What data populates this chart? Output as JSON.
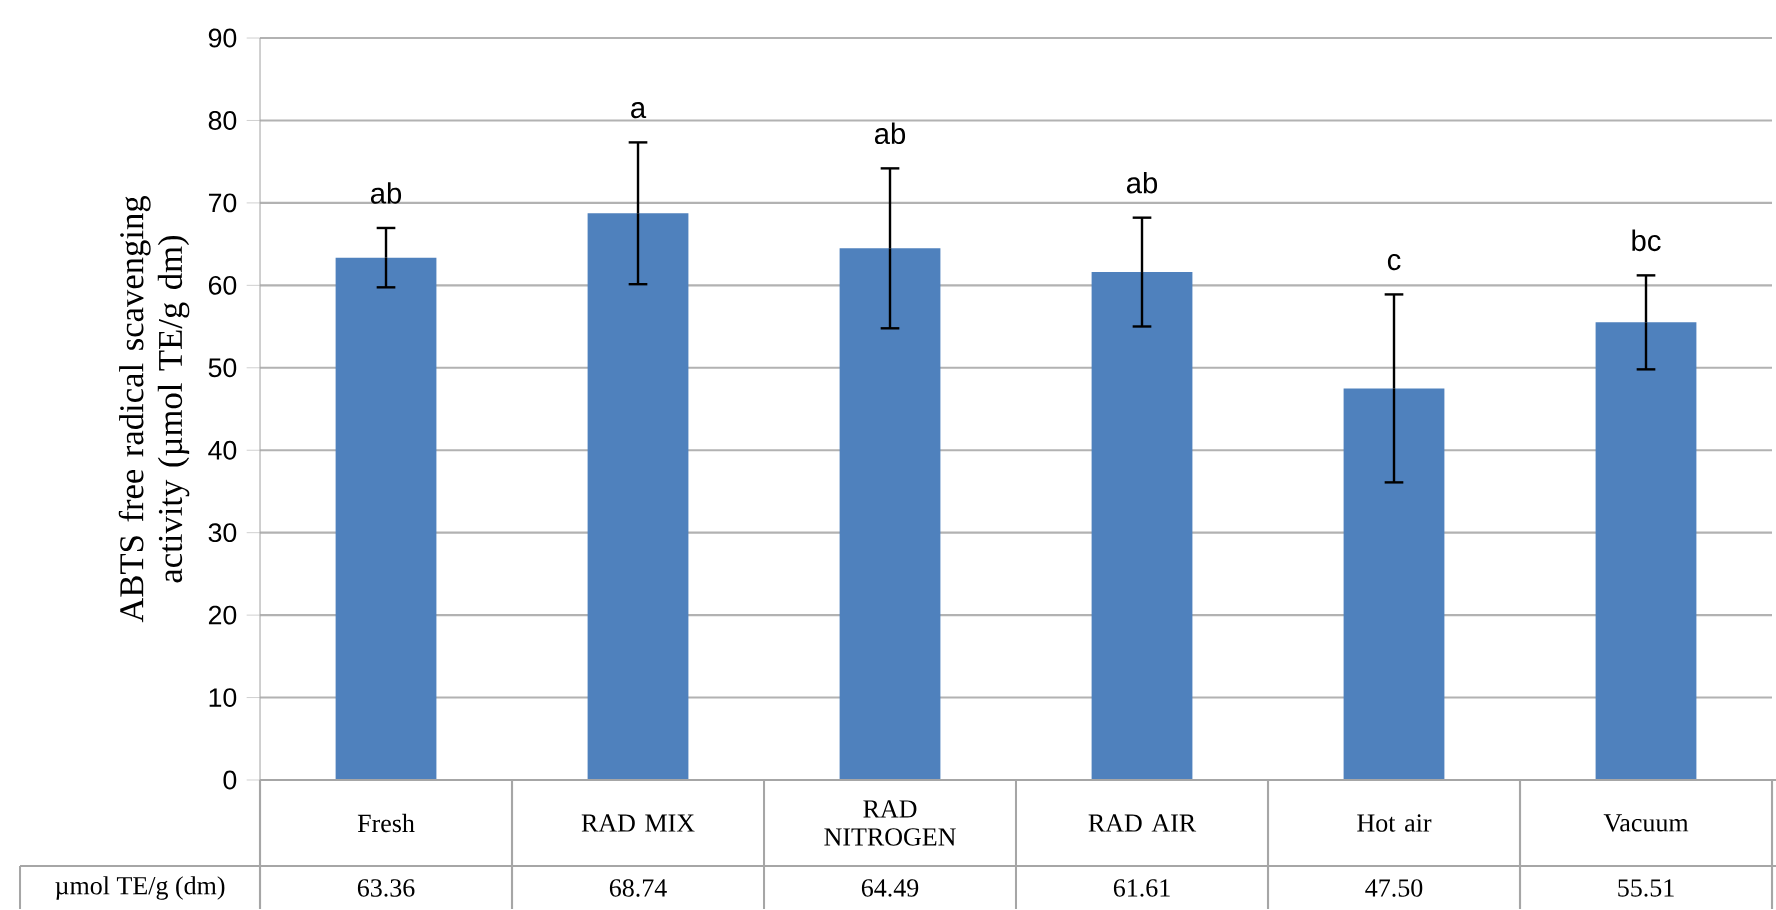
{
  "chart_data": {
    "type": "bar",
    "ylabel": "ABTS free radical scavenging activity (µmol TE/g dm)",
    "categories": [
      "Fresh",
      "RAD MIX",
      "RAD NITROGEN",
      "RAD AIR",
      "Hot air",
      "Vacuum"
    ],
    "values": [
      63.36,
      68.74,
      64.49,
      61.61,
      47.5,
      55.51
    ],
    "value_labels": [
      "63.36",
      "68.74",
      "64.49",
      "61.61",
      "47.50",
      "55.51"
    ],
    "errors": [
      3.6,
      8.6,
      9.7,
      6.6,
      11.4,
      5.7
    ],
    "color": "#4f81bd",
    "ylim": [
      0,
      90
    ],
    "yticks": [
      0,
      10,
      20,
      30,
      40,
      50,
      60,
      70,
      80,
      90
    ],
    "grid": "y",
    "annotations": [
      "ab",
      "a",
      "ab",
      "ab",
      "c",
      "bc",
      "µmol TE/g (dm)"
    ]
  }
}
